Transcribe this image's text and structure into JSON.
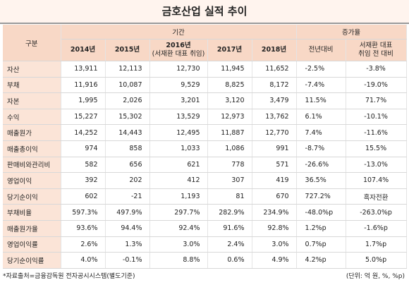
{
  "header": {
    "title": "금호산업 실적 추이"
  },
  "table": {
    "group_headers": [
      "구분",
      "기간",
      "증가율"
    ],
    "columns": [
      [
        "2014년"
      ],
      [
        "2015년"
      ],
      [
        "2016년",
        "(서재환 대표 취임)"
      ],
      [
        "2017년"
      ],
      [
        "2018년"
      ],
      [
        "전년대비"
      ],
      [
        "서재환 대표",
        "취임 전 대비"
      ]
    ],
    "rows": [
      [
        "자산",
        "13,911",
        "12,113",
        "12,730",
        "11,945",
        "11,652",
        "-2.5%",
        "-3.8%"
      ],
      [
        "부채",
        "11,916",
        "10,087",
        "9,529",
        "8,825",
        "8,172",
        "-7.4%",
        "-19.0%"
      ],
      [
        "자본",
        "1,995",
        "2,026",
        "3,201",
        "3,120",
        "3,479",
        "11.5%",
        "71.7%"
      ],
      [
        "수익",
        "15,227",
        "15,302",
        "13,529",
        "12,973",
        "13,762",
        "6.1%",
        "-10.1%"
      ],
      [
        "매출원가",
        "14,252",
        "14,443",
        "12,495",
        "11,887",
        "12,770",
        "7.4%",
        "-11.6%"
      ],
      [
        "매출총이익",
        "974",
        "858",
        "1,033",
        "1,086",
        "991",
        "-8.7%",
        "15.5%"
      ],
      [
        "판매비와관리비",
        "582",
        "656",
        "621",
        "778",
        "571",
        "-26.6%",
        "-13.0%"
      ],
      [
        "영업이익",
        "392",
        "202",
        "412",
        "307",
        "419",
        "36.5%",
        "107.4%"
      ],
      [
        "당기순이익",
        "602",
        "-21",
        "1,193",
        "81",
        "670",
        "727.2%",
        "흑자전환"
      ],
      [
        "부채비율",
        "597.3%",
        "497.9%",
        "297.7%",
        "282.9%",
        "234.9%",
        "-48.0%p",
        "-263.0%p"
      ],
      [
        "매출원가율",
        "93.6%",
        "94.4%",
        "92.4%",
        "91.6%",
        "92.8%",
        "1.2%p",
        "-1.6%p"
      ],
      [
        "영업이익률",
        "2.6%",
        "1.3%",
        "3.0%",
        "2.4%",
        "3.0%",
        "0.7%p",
        "1.7%p"
      ],
      [
        "당기순이익률",
        "4.0%",
        "-0.1%",
        "8.8%",
        "0.6%",
        "4.9%",
        "4.2%p",
        "5.0%p"
      ]
    ]
  },
  "footer": {
    "source": "*자료출처=금융감독원 전자공시시스템(별도기준)",
    "unit": "(단위: 억 원, %, %p)"
  }
}
